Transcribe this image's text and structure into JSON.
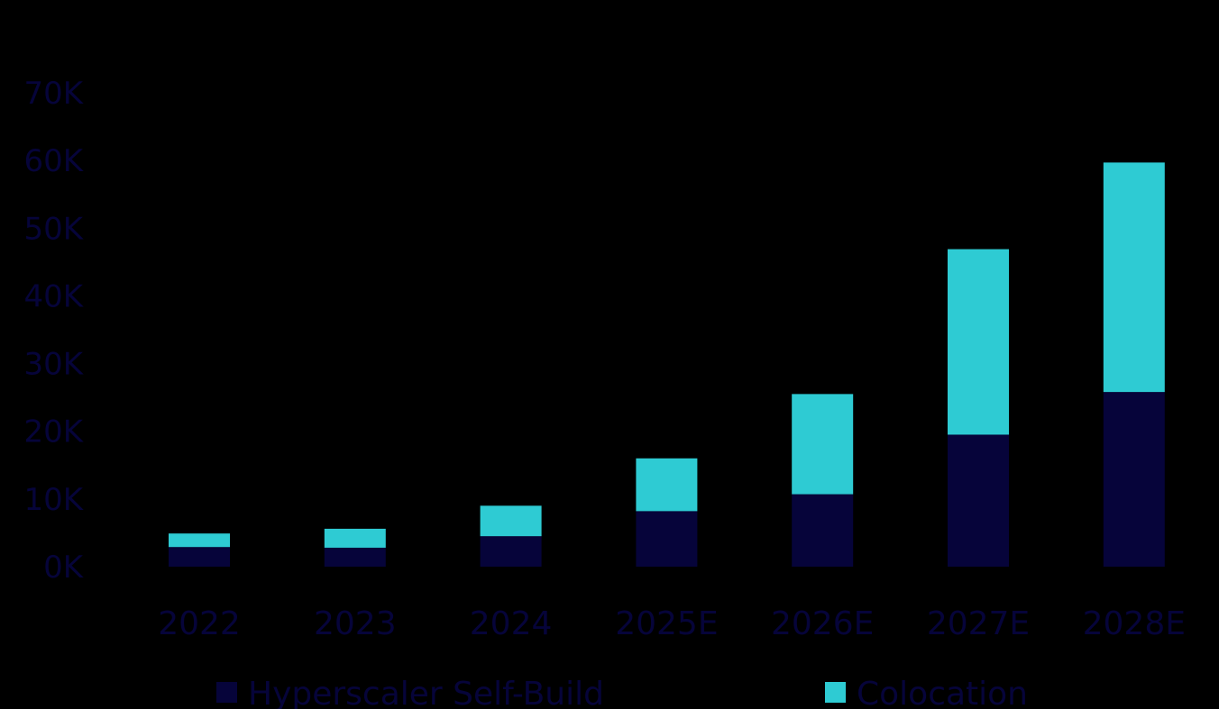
{
  "chart_data": {
    "type": "bar",
    "stacked": true,
    "categories": [
      "2022",
      "2023",
      "2024",
      "2025E",
      "2026E",
      "2027E",
      "2028E"
    ],
    "series": [
      {
        "name": "Hyperscaler Self-Build",
        "color": "#06043a",
        "values": [
          2900,
          2800,
          4500,
          8200,
          10700,
          19500,
          25800
        ]
      },
      {
        "name": "Colocation",
        "color": "#2ecbd3",
        "values": [
          2000,
          2800,
          4500,
          7800,
          14800,
          27400,
          33900
        ]
      }
    ],
    "ylim": [
      0,
      70000
    ],
    "yticks": [
      0,
      10000,
      20000,
      30000,
      40000,
      50000,
      60000,
      70000
    ],
    "ytick_labels": [
      "0K",
      "10K",
      "20K",
      "30K",
      "40K",
      "50K",
      "60K",
      "70K"
    ],
    "grid": false,
    "legend_position": "bottom",
    "title": "",
    "xlabel": "",
    "ylabel": ""
  },
  "colors": {
    "background": "#000000",
    "text": "#06043a"
  }
}
